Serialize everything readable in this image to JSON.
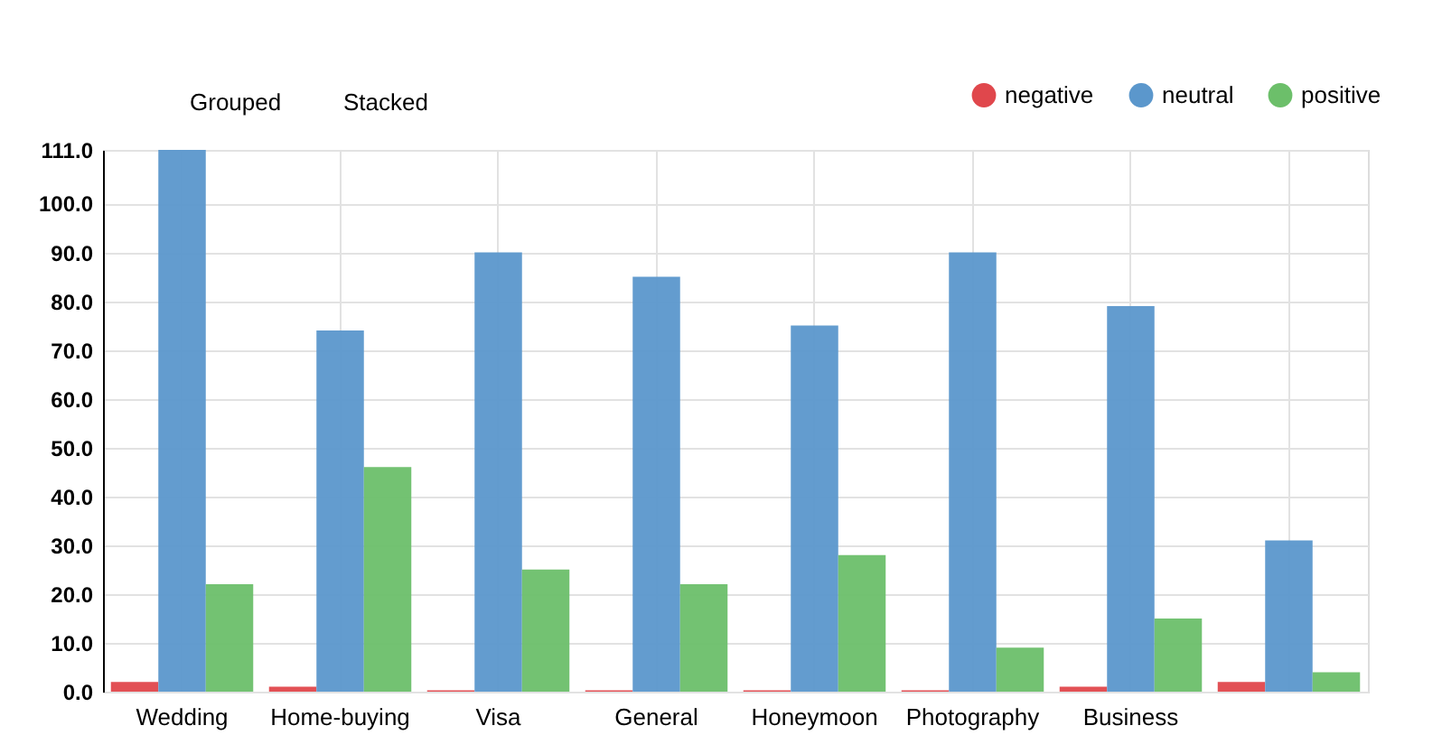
{
  "chart_data": {
    "type": "bar",
    "categories": [
      "Wedding",
      "Home-buying",
      "Visa",
      "General",
      "Honeymoon",
      "Photography",
      "Business",
      null
    ],
    "series": [
      {
        "name": "negative",
        "color": "#e0474c",
        "values": [
          2,
          1,
          0.3,
          0.3,
          0.3,
          0.3,
          1,
          2
        ]
      },
      {
        "name": "neutral",
        "color": "#5b97cc",
        "values": [
          111,
          74,
          90,
          85,
          75,
          90,
          79,
          31
        ]
      },
      {
        "name": "positive",
        "color": "#6cbf6a",
        "values": [
          22,
          46,
          25,
          22,
          28,
          9,
          15,
          4
        ]
      }
    ],
    "ylim": [
      0,
      111
    ],
    "yticks": [
      {
        "value": 0,
        "label": "0.0"
      },
      {
        "value": 10,
        "label": "10.0"
      },
      {
        "value": 20,
        "label": "20.0"
      },
      {
        "value": 30,
        "label": "30.0"
      },
      {
        "value": 40,
        "label": "40.0"
      },
      {
        "value": 50,
        "label": "50.0"
      },
      {
        "value": 60,
        "label": "60.0"
      },
      {
        "value": 70,
        "label": "70.0"
      },
      {
        "value": 80,
        "label": "80.0"
      },
      {
        "value": 90,
        "label": "90.0"
      },
      {
        "value": 100,
        "label": "100.0"
      },
      {
        "value": 111,
        "label": "111.0"
      }
    ],
    "annotations": [
      "Grouped",
      "Stacked"
    ],
    "grid": true,
    "legend": "top right"
  }
}
